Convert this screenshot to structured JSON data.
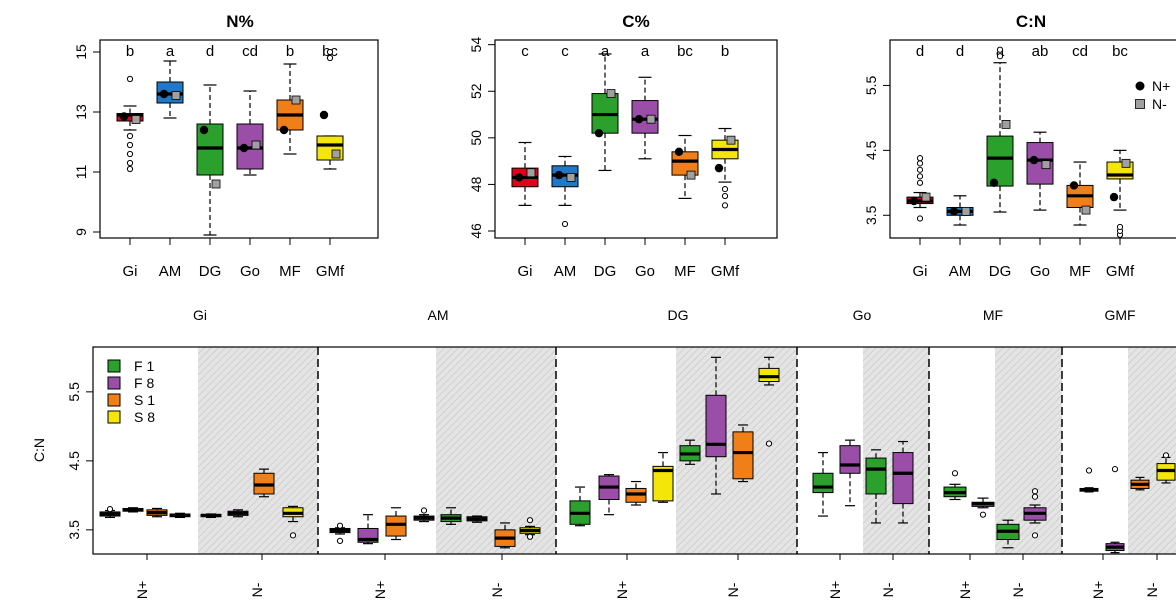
{
  "colors": {
    "Gi": "#e0001b",
    "AM": "#1f78c8",
    "DG": "#2ca02c",
    "Go": "#9b4ea8",
    "MF": "#f07f1a",
    "GMf": "#f5e60a",
    "F1": "#2ca02c",
    "F8": "#9b4ea8",
    "S1": "#f07f1a",
    "S8": "#f5e60a",
    "shade": "#dcdcdc"
  },
  "top_legend": [
    {
      "label": "N+",
      "marker": "circle"
    },
    {
      "label": "N-",
      "marker": "square"
    }
  ],
  "bottom_legend": [
    {
      "label": "F 1",
      "key": "F1"
    },
    {
      "label": "F 8",
      "key": "F8"
    },
    {
      "label": "S 1",
      "key": "S1"
    },
    {
      "label": "S 8",
      "key": "S8"
    }
  ],
  "chart_data": [
    {
      "type": "box",
      "title": "N%",
      "categories": [
        "Gi",
        "AM",
        "DG",
        "Go",
        "MF",
        "GMf"
      ],
      "ylim": [
        8.8,
        15.4
      ],
      "yticks": [
        "9",
        "11",
        "13",
        "15"
      ],
      "letters": [
        "b",
        "a",
        "d",
        "cd",
        "b",
        "bc"
      ],
      "boxes": [
        {
          "q1": 12.7,
          "med": 12.9,
          "q3": 12.95,
          "lo": 12.4,
          "hi": 13.2,
          "outliers": [
            11.1,
            11.3,
            11.6,
            11.9,
            12.2,
            14.1
          ],
          "mean_n_plus": 12.85,
          "mean_n_minus": 12.75
        },
        {
          "q1": 13.3,
          "med": 13.6,
          "q3": 14.0,
          "lo": 12.8,
          "hi": 14.7,
          "outliers": [],
          "mean_n_plus": 13.6,
          "mean_n_minus": 13.55
        },
        {
          "q1": 10.9,
          "med": 11.8,
          "q3": 12.6,
          "lo": 8.9,
          "hi": 13.9,
          "outliers": [],
          "mean_n_plus": 12.4,
          "mean_n_minus": 10.6
        },
        {
          "q1": 11.1,
          "med": 11.8,
          "q3": 12.6,
          "lo": 10.9,
          "hi": 13.7,
          "outliers": [],
          "mean_n_plus": 11.8,
          "mean_n_minus": 11.9
        },
        {
          "q1": 12.4,
          "med": 12.9,
          "q3": 13.4,
          "lo": 11.6,
          "hi": 14.6,
          "outliers": [],
          "mean_n_plus": 12.4,
          "mean_n_minus": 13.4
        },
        {
          "q1": 11.4,
          "med": 11.9,
          "q3": 12.2,
          "lo": 11.1,
          "hi": 12.2,
          "outliers": [
            14.8,
            15.0
          ],
          "mean_n_plus": 12.9,
          "mean_n_minus": 11.6
        }
      ]
    },
    {
      "type": "box",
      "title": "C%",
      "categories": [
        "Gi",
        "AM",
        "DG",
        "Go",
        "MF",
        "GMf"
      ],
      "ylim": [
        45.7,
        54.2
      ],
      "yticks": [
        "46",
        "48",
        "50",
        "52",
        "54"
      ],
      "letters": [
        "c",
        "c",
        "a",
        "a",
        "bc",
        "b"
      ],
      "boxes": [
        {
          "q1": 47.9,
          "med": 48.3,
          "q3": 48.7,
          "lo": 47.1,
          "hi": 49.8,
          "outliers": [],
          "mean_n_plus": 48.3,
          "mean_n_minus": 48.5
        },
        {
          "q1": 47.9,
          "med": 48.4,
          "q3": 48.8,
          "lo": 47.1,
          "hi": 49.2,
          "outliers": [
            46.3
          ],
          "mean_n_plus": 48.4,
          "mean_n_minus": 48.3
        },
        {
          "q1": 50.2,
          "med": 51.0,
          "q3": 51.9,
          "lo": 48.6,
          "hi": 53.6,
          "outliers": [],
          "mean_n_plus": 50.2,
          "mean_n_minus": 51.9
        },
        {
          "q1": 50.2,
          "med": 50.8,
          "q3": 51.6,
          "lo": 49.1,
          "hi": 52.6,
          "outliers": [],
          "mean_n_plus": 50.8,
          "mean_n_minus": 50.8
        },
        {
          "q1": 48.4,
          "med": 49.0,
          "q3": 49.4,
          "lo": 47.4,
          "hi": 50.1,
          "outliers": [],
          "mean_n_plus": 49.4,
          "mean_n_minus": 48.4
        },
        {
          "q1": 49.1,
          "med": 49.5,
          "q3": 49.9,
          "lo": 48.1,
          "hi": 50.4,
          "outliers": [
            47.1,
            47.5,
            47.8
          ],
          "mean_n_plus": 48.7,
          "mean_n_minus": 49.9
        }
      ]
    },
    {
      "type": "box",
      "title": "C:N",
      "categories": [
        "Gi",
        "AM",
        "DG",
        "Go",
        "MF",
        "GMf"
      ],
      "ylim": [
        3.15,
        6.2
      ],
      "yticks": [
        "3.5",
        "4.5",
        "5.5"
      ],
      "letters": [
        "d",
        "d",
        "a",
        "ab",
        "cd",
        "bc"
      ],
      "boxes": [
        {
          "q1": 3.68,
          "med": 3.72,
          "q3": 3.78,
          "lo": 3.62,
          "hi": 3.85,
          "outliers": [
            3.45,
            4.0,
            4.1,
            4.2,
            4.3,
            4.38
          ],
          "mean_n_plus": 3.72,
          "mean_n_minus": 3.78
        },
        {
          "q1": 3.5,
          "med": 3.56,
          "q3": 3.62,
          "lo": 3.35,
          "hi": 3.8,
          "outliers": [],
          "mean_n_plus": 3.56,
          "mean_n_minus": 3.56
        },
        {
          "q1": 3.95,
          "med": 4.38,
          "q3": 4.72,
          "lo": 3.55,
          "hi": 5.85,
          "outliers": [
            5.95,
            6.05
          ],
          "mean_n_plus": 4.0,
          "mean_n_minus": 4.9
        },
        {
          "q1": 3.98,
          "med": 4.35,
          "q3": 4.62,
          "lo": 3.58,
          "hi": 4.78,
          "outliers": [],
          "mean_n_plus": 4.35,
          "mean_n_minus": 4.28
        },
        {
          "q1": 3.62,
          "med": 3.8,
          "q3": 3.96,
          "lo": 3.35,
          "hi": 4.32,
          "outliers": [],
          "mean_n_plus": 3.96,
          "mean_n_minus": 3.58
        },
        {
          "q1": 4.06,
          "med": 4.12,
          "q3": 4.32,
          "lo": 3.58,
          "hi": 4.5,
          "outliers": [
            3.2,
            3.26,
            3.32
          ],
          "mean_n_plus": 3.78,
          "mean_n_minus": 4.3
        }
      ]
    },
    {
      "type": "box",
      "ylabel": "C:N",
      "ylim": [
        3.15,
        6.15
      ],
      "yticks": [
        "3.5",
        "4.5",
        "5.5"
      ],
      "sites": [
        "Gi",
        "AM",
        "DG",
        "Go",
        "MF",
        "GMF"
      ],
      "treatment_labels": [
        "N+",
        "N-"
      ],
      "groups": [
        {
          "site": "Gi",
          "boxes": [
            {
              "key": "F1",
              "q1": 3.7,
              "med": 3.73,
              "q3": 3.76,
              "lo": 3.68,
              "hi": 3.78,
              "outliers": [
                3.8
              ]
            },
            {
              "key": "F8",
              "q1": 3.77,
              "med": 3.79,
              "q3": 3.81,
              "lo": 3.76,
              "hi": 3.82,
              "outliers": []
            },
            {
              "key": "S1",
              "q1": 3.71,
              "med": 3.75,
              "q3": 3.79,
              "lo": 3.69,
              "hi": 3.81,
              "outliers": []
            },
            {
              "key": "S8",
              "q1": 3.69,
              "med": 3.71,
              "q3": 3.73,
              "lo": 3.68,
              "hi": 3.74,
              "outliers": []
            },
            {
              "key": "F1",
              "q1": 3.69,
              "med": 3.71,
              "q3": 3.72,
              "lo": 3.68,
              "hi": 3.73,
              "outliers": []
            },
            {
              "key": "F8",
              "q1": 3.71,
              "med": 3.74,
              "q3": 3.77,
              "lo": 3.69,
              "hi": 3.79,
              "outliers": []
            },
            {
              "key": "S1",
              "q1": 4.02,
              "med": 4.15,
              "q3": 4.32,
              "lo": 3.98,
              "hi": 4.38,
              "outliers": []
            },
            {
              "key": "S8",
              "q1": 3.69,
              "med": 3.74,
              "q3": 3.82,
              "lo": 3.62,
              "hi": 3.84,
              "outliers": [
                3.42
              ]
            }
          ]
        },
        {
          "site": "AM",
          "boxes": [
            {
              "key": "F1",
              "q1": 3.46,
              "med": 3.49,
              "q3": 3.52,
              "lo": 3.44,
              "hi": 3.53,
              "outliers": [
                3.34,
                3.56
              ]
            },
            {
              "key": "F8",
              "q1": 3.32,
              "med": 3.36,
              "q3": 3.52,
              "lo": 3.3,
              "hi": 3.72,
              "outliers": []
            },
            {
              "key": "S1",
              "q1": 3.41,
              "med": 3.58,
              "q3": 3.7,
              "lo": 3.36,
              "hi": 3.82,
              "outliers": []
            },
            {
              "key": "S8",
              "q1": 3.64,
              "med": 3.67,
              "q3": 3.7,
              "lo": 3.62,
              "hi": 3.72,
              "outliers": [
                3.78
              ]
            },
            {
              "key": "F1",
              "q1": 3.62,
              "med": 3.67,
              "q3": 3.72,
              "lo": 3.58,
              "hi": 3.82,
              "outliers": []
            },
            {
              "key": "F8",
              "q1": 3.63,
              "med": 3.66,
              "q3": 3.69,
              "lo": 3.61,
              "hi": 3.7,
              "outliers": []
            },
            {
              "key": "S1",
              "q1": 3.26,
              "med": 3.38,
              "q3": 3.5,
              "lo": 3.24,
              "hi": 3.6,
              "outliers": []
            },
            {
              "key": "S8",
              "q1": 3.45,
              "med": 3.49,
              "q3": 3.53,
              "lo": 3.43,
              "hi": 3.55,
              "outliers": [
                3.4,
                3.64
              ]
            }
          ]
        },
        {
          "site": "DG",
          "boxes": [
            {
              "key": "F1",
              "q1": 3.58,
              "med": 3.74,
              "q3": 3.92,
              "lo": 3.56,
              "hi": 4.12,
              "outliers": []
            },
            {
              "key": "F8",
              "q1": 3.94,
              "med": 4.12,
              "q3": 4.28,
              "lo": 3.72,
              "hi": 4.3,
              "outliers": []
            },
            {
              "key": "S1",
              "q1": 3.9,
              "med": 4.02,
              "q3": 4.1,
              "lo": 3.86,
              "hi": 4.2,
              "outliers": []
            },
            {
              "key": "S8",
              "q1": 3.92,
              "med": 4.36,
              "q3": 4.42,
              "lo": 3.9,
              "hi": 4.62,
              "outliers": []
            },
            {
              "key": "F1",
              "q1": 4.5,
              "med": 4.6,
              "q3": 4.72,
              "lo": 4.45,
              "hi": 4.8,
              "outliers": []
            },
            {
              "key": "F8",
              "q1": 4.56,
              "med": 4.74,
              "q3": 5.45,
              "lo": 4.02,
              "hi": 6.0,
              "outliers": []
            },
            {
              "key": "S1",
              "q1": 4.24,
              "med": 4.62,
              "q3": 4.92,
              "lo": 4.2,
              "hi": 5.02,
              "outliers": []
            },
            {
              "key": "S8",
              "q1": 5.65,
              "med": 5.72,
              "q3": 5.84,
              "lo": 5.6,
              "hi": 6.0,
              "outliers": [
                4.75
              ]
            }
          ]
        },
        {
          "site": "Go",
          "boxes": [
            {
              "key": "F1",
              "q1": 4.04,
              "med": 4.12,
              "q3": 4.32,
              "lo": 3.7,
              "hi": 4.62,
              "outliers": []
            },
            {
              "key": "F8",
              "q1": 4.32,
              "med": 4.44,
              "q3": 4.72,
              "lo": 3.85,
              "hi": 4.8,
              "outliers": []
            },
            {
              "key": "F1",
              "q1": 4.02,
              "med": 4.38,
              "q3": 4.54,
              "lo": 3.6,
              "hi": 4.66,
              "outliers": []
            },
            {
              "key": "F8",
              "q1": 3.88,
              "med": 4.32,
              "q3": 4.62,
              "lo": 3.6,
              "hi": 4.78,
              "outliers": []
            }
          ]
        },
        {
          "site": "MF",
          "boxes": [
            {
              "key": "F1",
              "q1": 3.98,
              "med": 4.04,
              "q3": 4.12,
              "lo": 3.94,
              "hi": 4.16,
              "outliers": [
                4.32
              ]
            },
            {
              "key": "F8",
              "q1": 3.84,
              "med": 3.88,
              "q3": 3.9,
              "lo": 3.82,
              "hi": 3.96,
              "outliers": [
                3.72
              ]
            },
            {
              "key": "F1",
              "q1": 3.36,
              "med": 3.48,
              "q3": 3.58,
              "lo": 3.24,
              "hi": 3.64,
              "outliers": []
            },
            {
              "key": "F8",
              "q1": 3.64,
              "med": 3.74,
              "q3": 3.82,
              "lo": 3.6,
              "hi": 3.86,
              "outliers": [
                3.42,
                3.98,
                4.06
              ]
            }
          ]
        },
        {
          "site": "GMF",
          "boxes": [
            {
              "key": "F1",
              "q1": 4.06,
              "med": 4.08,
              "q3": 4.1,
              "lo": 4.05,
              "hi": 4.11,
              "outliers": [
                4.36
              ]
            },
            {
              "key": "F8",
              "q1": 3.2,
              "med": 3.25,
              "q3": 3.3,
              "lo": 3.17,
              "hi": 3.32,
              "outliers": [
                4.38
              ]
            },
            {
              "key": "S1",
              "q1": 4.1,
              "med": 4.16,
              "q3": 4.22,
              "lo": 4.08,
              "hi": 4.26,
              "outliers": []
            },
            {
              "key": "S8",
              "q1": 4.22,
              "med": 4.36,
              "q3": 4.46,
              "lo": 4.18,
              "hi": 4.55,
              "outliers": [
                4.58
              ]
            }
          ]
        }
      ]
    }
  ]
}
